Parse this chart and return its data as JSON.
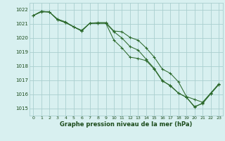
{
  "x": [
    0,
    1,
    2,
    3,
    4,
    5,
    6,
    7,
    8,
    9,
    10,
    11,
    12,
    13,
    14,
    15,
    16,
    17,
    18,
    19,
    20,
    21,
    22,
    23
  ],
  "series1": [
    1021.6,
    1021.9,
    1021.85,
    1021.35,
    1021.15,
    1020.8,
    1020.55,
    1021.05,
    1021.1,
    1021.1,
    1020.5,
    1020.45,
    1020.05,
    1019.85,
    1019.3,
    1018.65,
    1017.8,
    1017.5,
    1016.9,
    1015.85,
    1015.65,
    1015.45,
    1016.1,
    1016.75
  ],
  "series2": [
    1021.6,
    1021.9,
    1021.85,
    1021.3,
    1021.1,
    1020.8,
    1020.5,
    1021.05,
    1021.05,
    1021.05,
    1019.85,
    1019.3,
    1018.65,
    1018.55,
    1018.4,
    1017.8,
    1016.95,
    1016.65,
    1016.1,
    1015.8,
    1015.15,
    1015.35,
    1016.05,
    1016.7
  ],
  "series3": [
    1021.6,
    1021.85,
    1021.85,
    1021.3,
    1021.1,
    1020.8,
    1020.5,
    1021.05,
    1021.05,
    1021.05,
    1020.45,
    1020.0,
    1019.4,
    1019.15,
    1018.5,
    1017.85,
    1017.0,
    1016.6,
    1016.1,
    1015.8,
    1015.1,
    1015.4,
    1016.05,
    1016.7
  ],
  "line_color": "#2d6a2d",
  "bg_color": "#d8f0f0",
  "grid_color": "#aacfcf",
  "xlabel": "Graphe pression niveau de la mer (hPa)",
  "xlabel_color": "#1a4a1a",
  "tick_label_color": "#1a4a1a",
  "ylim_min": 1014.5,
  "ylim_max": 1022.5,
  "xlim_min": -0.5,
  "xlim_max": 23.5,
  "yticks": [
    1015,
    1016,
    1017,
    1018,
    1019,
    1020,
    1021,
    1022
  ],
  "xticks": [
    0,
    1,
    2,
    3,
    4,
    5,
    6,
    7,
    8,
    9,
    10,
    11,
    12,
    13,
    14,
    15,
    16,
    17,
    18,
    19,
    20,
    21,
    22,
    23
  ]
}
